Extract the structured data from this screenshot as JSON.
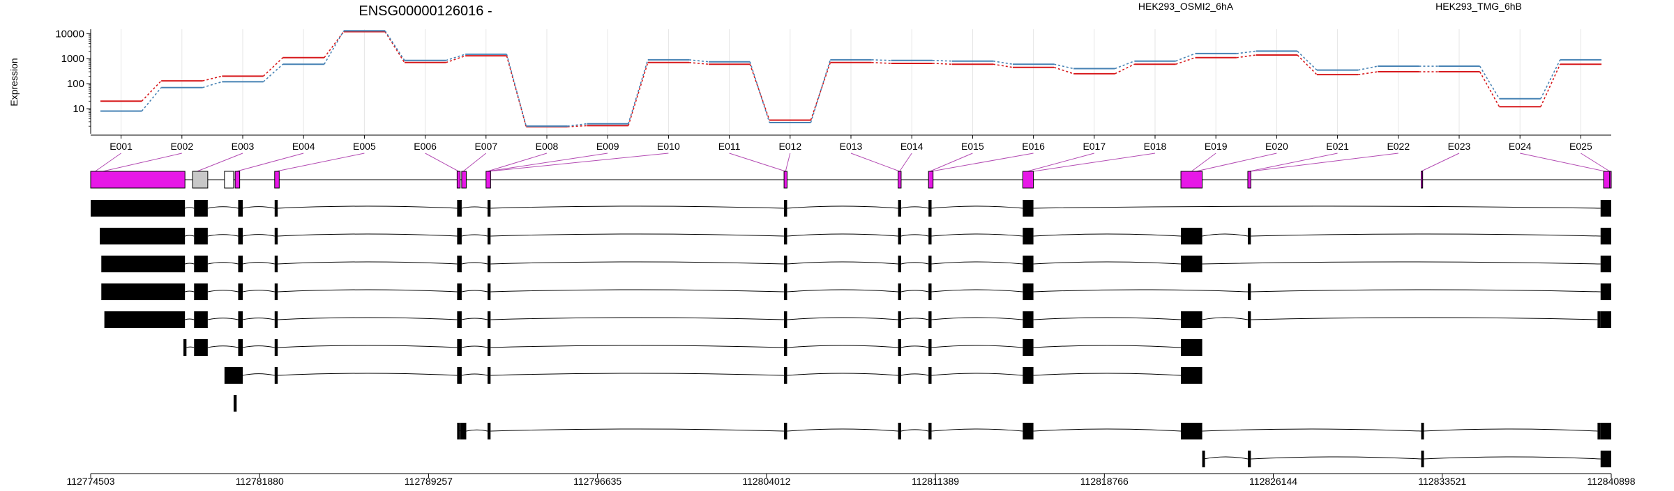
{
  "chart_data": {
    "type": "line",
    "title": "ENSG00000126016 -",
    "ylabel": "Expression",
    "ylog": true,
    "ylim": [
      1,
      15000
    ],
    "yticks": [
      {
        "value": 10,
        "label": "10"
      },
      {
        "value": 100,
        "label": "100"
      },
      {
        "value": 1000,
        "label": "1000"
      },
      {
        "value": 10000,
        "label": "10000"
      }
    ],
    "legend_position": "top",
    "exons": [
      "E001",
      "E002",
      "E003",
      "E004",
      "E005",
      "E006",
      "E007",
      "E008",
      "E009",
      "E010",
      "E011",
      "E012",
      "E013",
      "E014",
      "E015",
      "E016",
      "E017",
      "E018",
      "E019",
      "E020",
      "E021",
      "E022",
      "E023",
      "E024",
      "E025"
    ],
    "series": [
      {
        "name": "HEK293_OSMI2_6hA",
        "color": "#d7191c",
        "values": [
          20,
          130,
          200,
          1100,
          12000,
          700,
          1300,
          1.9,
          2.1,
          700,
          600,
          3.5,
          700,
          650,
          600,
          450,
          250,
          600,
          1100,
          1400,
          230,
          300,
          300,
          12,
          600
        ]
      },
      {
        "name": "HEK293_TMG_6hB",
        "color": "#4682b4",
        "values": [
          8,
          70,
          120,
          600,
          13000,
          850,
          1500,
          2.0,
          2.5,
          900,
          750,
          2.8,
          900,
          850,
          800,
          600,
          400,
          800,
          1600,
          2000,
          350,
          500,
          500,
          25,
          900
        ]
      }
    ],
    "genomic_axis": {
      "ticks": [
        {
          "value": 112774503,
          "label": "112774503"
        },
        {
          "value": 112781880,
          "label": "112781880"
        },
        {
          "value": 112789257,
          "label": "112789257"
        },
        {
          "value": 112796635,
          "label": "112796635"
        },
        {
          "value": 112804012,
          "label": "112804012"
        },
        {
          "value": 112811389,
          "label": "112811389"
        },
        {
          "value": 112818766,
          "label": "112818766"
        },
        {
          "value": 112826144,
          "label": "112826144"
        },
        {
          "value": 112833521,
          "label": "112833521"
        },
        {
          "value": 112840898,
          "label": "112840898"
        }
      ]
    },
    "colors": {
      "exon_highlight": "#e718e7",
      "exon_other": "#c8c8c8",
      "transcript_exon": "#000000"
    }
  }
}
